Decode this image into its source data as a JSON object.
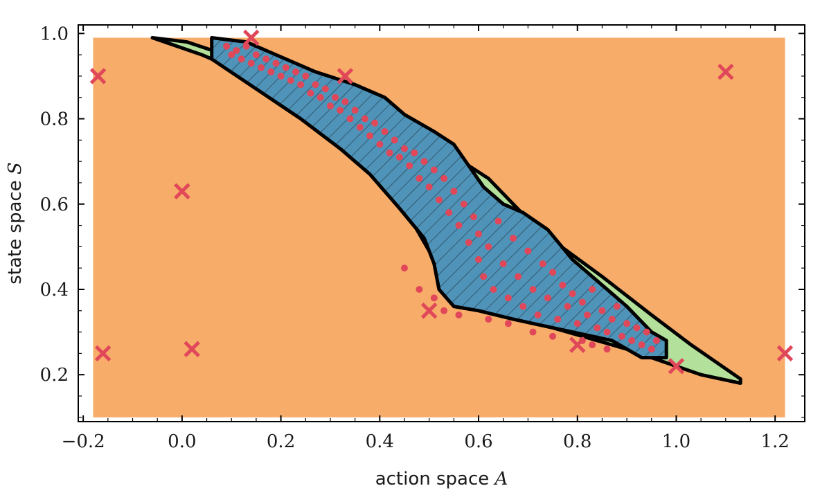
{
  "chart_data": {
    "type": "scatter",
    "title": "",
    "xlabel": "action space",
    "xlabel_symbol": "A",
    "ylabel": "state space",
    "ylabel_symbol": "S",
    "xlim": [
      -0.21,
      1.26
    ],
    "ylim": [
      0.09,
      1.02
    ],
    "xticks": [
      -0.2,
      0.0,
      0.2,
      0.4,
      0.6,
      0.8,
      1.0,
      1.2
    ],
    "xtick_labels": [
      "−0.2",
      "0.0",
      "0.2",
      "0.4",
      "0.6",
      "0.8",
      "1.0",
      "1.2"
    ],
    "yticks": [
      0.2,
      0.4,
      0.6,
      0.8,
      1.0
    ],
    "ytick_labels": [
      "0.2",
      "0.4",
      "0.6",
      "0.8",
      "1.0"
    ],
    "grid": false,
    "background_region": {
      "x": [
        -0.18,
        1.22
      ],
      "y": [
        0.1,
        0.99
      ],
      "color": "#f8ac69"
    },
    "regions": [
      {
        "role": "outer-feasible",
        "color": "#b3e09a",
        "outline": "#000000",
        "polygon": [
          [
            -0.06,
            0.99
          ],
          [
            0.01,
            0.98
          ],
          [
            0.14,
            0.93
          ],
          [
            0.33,
            0.86
          ],
          [
            0.5,
            0.75
          ],
          [
            0.62,
            0.66
          ],
          [
            0.72,
            0.54
          ],
          [
            0.85,
            0.43
          ],
          [
            0.95,
            0.34
          ],
          [
            1.03,
            0.27
          ],
          [
            1.13,
            0.19
          ],
          [
            1.13,
            0.18
          ],
          [
            1.05,
            0.2
          ],
          [
            0.9,
            0.26
          ],
          [
            0.75,
            0.31
          ],
          [
            0.64,
            0.34
          ],
          [
            0.58,
            0.38
          ],
          [
            0.5,
            0.49
          ],
          [
            0.45,
            0.59
          ],
          [
            0.37,
            0.7
          ],
          [
            0.25,
            0.81
          ],
          [
            0.14,
            0.9
          ],
          [
            0.04,
            0.95
          ],
          [
            -0.06,
            0.99
          ]
        ]
      },
      {
        "role": "inner-safe",
        "color": "#4f93b8",
        "outline": "#000000",
        "hatch": true,
        "polygon": [
          [
            0.06,
            0.99
          ],
          [
            0.13,
            0.98
          ],
          [
            0.27,
            0.91
          ],
          [
            0.35,
            0.88
          ],
          [
            0.41,
            0.85
          ],
          [
            0.45,
            0.81
          ],
          [
            0.51,
            0.77
          ],
          [
            0.55,
            0.74
          ],
          [
            0.61,
            0.64
          ],
          [
            0.65,
            0.6
          ],
          [
            0.69,
            0.58
          ],
          [
            0.74,
            0.54
          ],
          [
            0.79,
            0.47
          ],
          [
            0.84,
            0.42
          ],
          [
            0.9,
            0.36
          ],
          [
            0.95,
            0.3
          ],
          [
            0.98,
            0.28
          ],
          [
            0.98,
            0.24
          ],
          [
            0.93,
            0.24
          ],
          [
            0.87,
            0.28
          ],
          [
            0.79,
            0.3
          ],
          [
            0.67,
            0.33
          ],
          [
            0.6,
            0.35
          ],
          [
            0.55,
            0.36
          ],
          [
            0.52,
            0.4
          ],
          [
            0.51,
            0.46
          ],
          [
            0.49,
            0.52
          ],
          [
            0.44,
            0.59
          ],
          [
            0.38,
            0.67
          ],
          [
            0.32,
            0.73
          ],
          [
            0.24,
            0.8
          ],
          [
            0.15,
            0.87
          ],
          [
            0.06,
            0.94
          ]
        ]
      }
    ],
    "series": [
      {
        "marker": "dot",
        "color": "#e0485a",
        "points": [
          [
            0.09,
            0.97
          ],
          [
            0.1,
            0.95
          ],
          [
            0.11,
            0.96
          ],
          [
            0.12,
            0.94
          ],
          [
            0.13,
            0.97
          ],
          [
            0.14,
            0.93
          ],
          [
            0.15,
            0.95
          ],
          [
            0.16,
            0.92
          ],
          [
            0.17,
            0.94
          ],
          [
            0.18,
            0.91
          ],
          [
            0.19,
            0.93
          ],
          [
            0.2,
            0.9
          ],
          [
            0.21,
            0.92
          ],
          [
            0.22,
            0.89
          ],
          [
            0.23,
            0.91
          ],
          [
            0.24,
            0.88
          ],
          [
            0.25,
            0.9
          ],
          [
            0.26,
            0.86
          ],
          [
            0.27,
            0.88
          ],
          [
            0.28,
            0.85
          ],
          [
            0.29,
            0.87
          ],
          [
            0.3,
            0.83
          ],
          [
            0.31,
            0.85
          ],
          [
            0.32,
            0.82
          ],
          [
            0.33,
            0.84
          ],
          [
            0.34,
            0.8
          ],
          [
            0.35,
            0.82
          ],
          [
            0.36,
            0.78
          ],
          [
            0.37,
            0.8
          ],
          [
            0.38,
            0.76
          ],
          [
            0.39,
            0.79
          ],
          [
            0.4,
            0.74
          ],
          [
            0.41,
            0.77
          ],
          [
            0.42,
            0.72
          ],
          [
            0.43,
            0.75
          ],
          [
            0.44,
            0.71
          ],
          [
            0.45,
            0.73
          ],
          [
            0.46,
            0.69
          ],
          [
            0.47,
            0.72
          ],
          [
            0.48,
            0.66
          ],
          [
            0.49,
            0.7
          ],
          [
            0.5,
            0.64
          ],
          [
            0.51,
            0.68
          ],
          [
            0.52,
            0.61
          ],
          [
            0.53,
            0.66
          ],
          [
            0.54,
            0.58
          ],
          [
            0.55,
            0.63
          ],
          [
            0.56,
            0.55
          ],
          [
            0.57,
            0.6
          ],
          [
            0.58,
            0.51
          ],
          [
            0.59,
            0.57
          ],
          [
            0.6,
            0.47
          ],
          [
            0.6,
            0.53
          ],
          [
            0.61,
            0.43
          ],
          [
            0.62,
            0.5
          ],
          [
            0.63,
            0.4
          ],
          [
            0.64,
            0.56
          ],
          [
            0.65,
            0.46
          ],
          [
            0.66,
            0.38
          ],
          [
            0.67,
            0.52
          ],
          [
            0.68,
            0.43
          ],
          [
            0.69,
            0.36
          ],
          [
            0.7,
            0.49
          ],
          [
            0.71,
            0.4
          ],
          [
            0.72,
            0.34
          ],
          [
            0.73,
            0.46
          ],
          [
            0.74,
            0.38
          ],
          [
            0.75,
            0.44
          ],
          [
            0.76,
            0.33
          ],
          [
            0.77,
            0.41
          ],
          [
            0.78,
            0.36
          ],
          [
            0.79,
            0.39
          ],
          [
            0.8,
            0.32
          ],
          [
            0.81,
            0.37
          ],
          [
            0.82,
            0.34
          ],
          [
            0.83,
            0.4
          ],
          [
            0.84,
            0.31
          ],
          [
            0.85,
            0.35
          ],
          [
            0.86,
            0.3
          ],
          [
            0.87,
            0.33
          ],
          [
            0.88,
            0.36
          ],
          [
            0.89,
            0.29
          ],
          [
            0.9,
            0.32
          ],
          [
            0.91,
            0.28
          ],
          [
            0.92,
            0.31
          ],
          [
            0.93,
            0.27
          ],
          [
            0.94,
            0.3
          ],
          [
            0.95,
            0.26
          ],
          [
            0.96,
            0.28
          ],
          [
            0.45,
            0.45
          ],
          [
            0.48,
            0.4
          ],
          [
            0.51,
            0.38
          ],
          [
            0.53,
            0.35
          ],
          [
            0.56,
            0.34
          ],
          [
            0.62,
            0.33
          ],
          [
            0.66,
            0.32
          ],
          [
            0.71,
            0.3
          ],
          [
            0.75,
            0.29
          ],
          [
            0.81,
            0.28
          ],
          [
            0.83,
            0.27
          ],
          [
            0.86,
            0.26
          ]
        ]
      },
      {
        "marker": "x",
        "color": "#e0485a",
        "points": [
          [
            -0.17,
            0.9
          ],
          [
            0.14,
            0.99
          ],
          [
            0.33,
            0.9
          ],
          [
            1.1,
            0.91
          ],
          [
            0.0,
            0.63
          ],
          [
            -0.16,
            0.25
          ],
          [
            0.02,
            0.26
          ],
          [
            0.5,
            0.35
          ],
          [
            1.0,
            0.22
          ],
          [
            1.22,
            0.25
          ],
          [
            0.8,
            0.27
          ]
        ]
      }
    ]
  }
}
